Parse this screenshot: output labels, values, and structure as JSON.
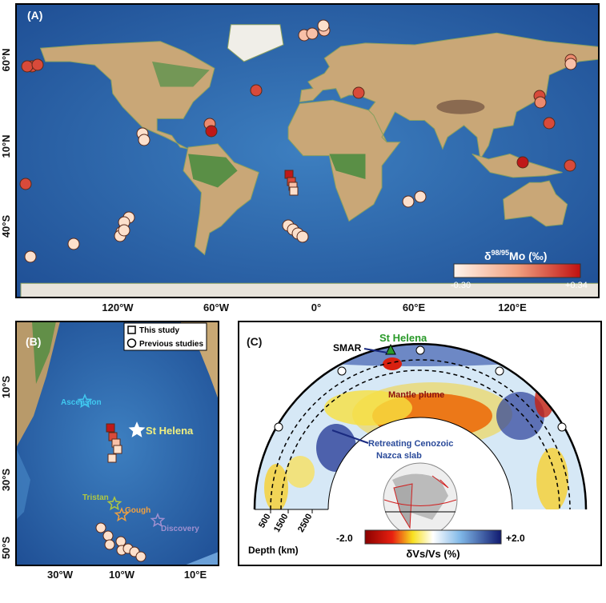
{
  "panel_a": {
    "label": "(A)",
    "x_labels": [
      "120°W",
      "60°W",
      "0°",
      "60°E",
      "120°E"
    ],
    "y_labels": [
      "60°N",
      "10°N",
      "40°S"
    ],
    "colorbar": {
      "delta": "δ",
      "superscript": "98/95",
      "rest": "Mo (‰)",
      "min": "-0.30",
      "max": "+0.34"
    }
  },
  "panel_b": {
    "label": "(B)",
    "legend": [
      "This study",
      "Previous studies"
    ],
    "places": [
      "Ascension",
      "St Helena",
      "Tristan",
      "Gough",
      "Discovery"
    ],
    "x_labels": [
      "30°W",
      "10°W",
      "10°E"
    ],
    "y_labels": [
      "10°S",
      "30°S",
      "50°S"
    ]
  },
  "panel_c": {
    "label": "(C)",
    "annotations": [
      "SMAR",
      "St Helena",
      "Mantle plume",
      "Retreating Cenozoic",
      "Nazca slab"
    ],
    "depth_ticks": [
      "500",
      "1500",
      "2500"
    ],
    "depth_title": "Depth (km)",
    "colorbar": {
      "min": "-2.0",
      "max": "+2.0",
      "title": "δVs/Vs (%)"
    }
  }
}
